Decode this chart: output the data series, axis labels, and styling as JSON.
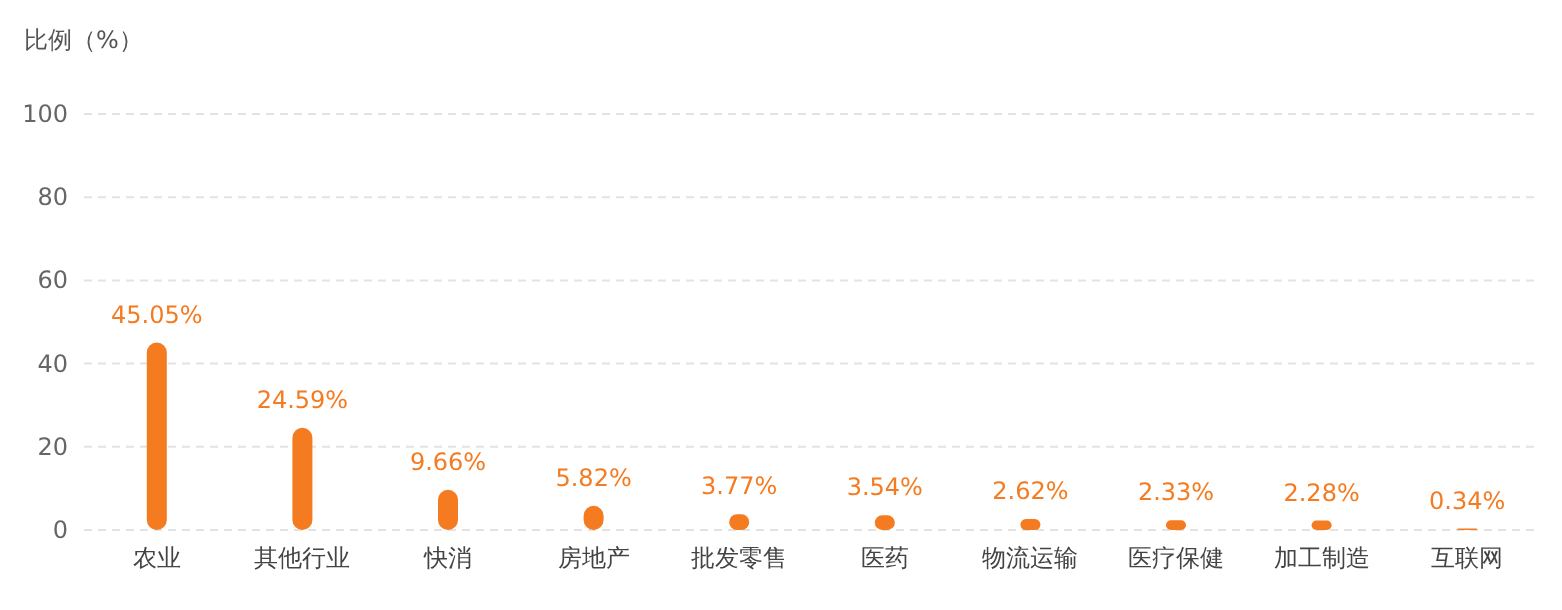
{
  "chart_data": {
    "type": "bar",
    "ylabel": "比例（%）",
    "categories": [
      "农业",
      "其他行业",
      "快消",
      "房地产",
      "批发零售",
      "医药",
      "物流运输",
      "医疗保健",
      "加工制造",
      "互联网"
    ],
    "values": [
      45.05,
      24.59,
      9.66,
      5.82,
      3.77,
      3.54,
      2.62,
      2.33,
      2.28,
      0.34
    ],
    "value_labels": [
      "45.05%",
      "24.59%",
      "9.66%",
      "5.82%",
      "3.77%",
      "3.54%",
      "2.62%",
      "2.33%",
      "2.28%",
      "0.34%"
    ],
    "color": "#f47b20",
    "ylim": [
      0,
      100
    ],
    "yticks": [
      0,
      20,
      40,
      60,
      80,
      100
    ],
    "grid": "y"
  }
}
